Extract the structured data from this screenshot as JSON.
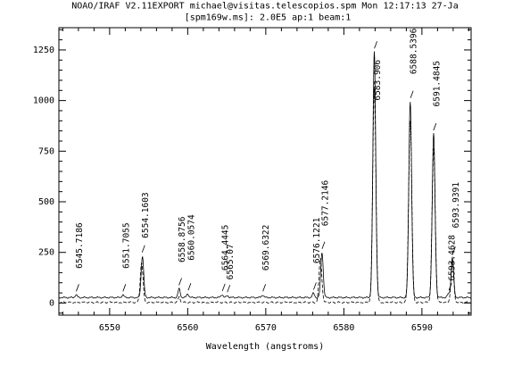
{
  "chart_data": {
    "type": "line",
    "title": "NOAO/IRAF V2.11EXPORT michael@visitas.telescopios.spm Mon 12:17:13 27-Ja",
    "subtitle": "[spm169w.ms]:  2.0E5 ap:1 beam:1",
    "xlabel": "Wavelength (angstroms)",
    "ylabel": "",
    "xlim": [
      6543.5,
      6596.3
    ],
    "ylim": [
      -60,
      1360
    ],
    "xticks": [
      6550,
      6560,
      6570,
      6580,
      6590
    ],
    "yticks": [
      0,
      250,
      500,
      750,
      1000,
      1250
    ],
    "xtick_labels": [
      "6550",
      "6560",
      "6570",
      "6580",
      "6590"
    ],
    "ytick_labels": [
      "0",
      "250",
      "500",
      "750",
      "1000",
      "1250"
    ],
    "grid": false,
    "series": [
      {
        "style": "solid",
        "baseline": 27,
        "peaks": [
          {
            "x": 6545.7,
            "y": 40,
            "w": 0.14
          },
          {
            "x": 6551.7,
            "y": 40,
            "w": 0.14
          },
          {
            "x": 6554.2,
            "y": 232,
            "w": 0.16
          },
          {
            "x": 6558.9,
            "y": 70,
            "w": 0.14
          },
          {
            "x": 6560.0,
            "y": 45,
            "w": 0.14
          },
          {
            "x": 6564.4,
            "y": 42,
            "w": 0.14
          },
          {
            "x": 6565.1,
            "y": 36,
            "w": 0.14
          },
          {
            "x": 6569.6,
            "y": 40,
            "w": 0.14
          },
          {
            "x": 6576.1,
            "y": 48,
            "w": 0.14
          },
          {
            "x": 6577.2,
            "y": 250,
            "w": 0.16
          },
          {
            "x": 6583.9,
            "y": 1240,
            "w": 0.18
          },
          {
            "x": 6588.5,
            "y": 995,
            "w": 0.18
          },
          {
            "x": 6591.5,
            "y": 835,
            "w": 0.18
          },
          {
            "x": 6593.4,
            "y": 45,
            "w": 0.14
          },
          {
            "x": 6593.9,
            "y": 225,
            "w": 0.16
          }
        ]
      },
      {
        "style": "dashed",
        "baseline": 3,
        "peaks": [
          {
            "x": 6554.1,
            "y": 200,
            "w": 0.18
          },
          {
            "x": 6558.9,
            "y": 30,
            "w": 0.14
          },
          {
            "x": 6577.0,
            "y": 220,
            "w": 0.18
          },
          {
            "x": 6583.9,
            "y": 1060,
            "w": 0.2
          },
          {
            "x": 6588.5,
            "y": 900,
            "w": 0.2
          },
          {
            "x": 6591.5,
            "y": 760,
            "w": 0.2
          },
          {
            "x": 6593.9,
            "y": 200,
            "w": 0.18
          }
        ]
      }
    ],
    "annotations": [
      {
        "text": "6545.7186",
        "x": 6545.72,
        "y": 40,
        "label_y": 170
      },
      {
        "text": "6551.7055",
        "x": 6551.71,
        "y": 40,
        "label_y": 170
      },
      {
        "text": "6554.1603",
        "x": 6554.16,
        "y": 232,
        "label_y": 320
      },
      {
        "text": "6558.8756",
        "x": 6558.88,
        "y": 70,
        "label_y": 200
      },
      {
        "text": "6560.0574",
        "x": 6560.06,
        "y": 45,
        "label_y": 210
      },
      {
        "text": "6564.4445",
        "x": 6564.44,
        "y": 42,
        "label_y": 160
      },
      {
        "text": "6565.07",
        "x": 6565.07,
        "y": 36,
        "label_y": 115
      },
      {
        "text": "6569.6322",
        "x": 6569.63,
        "y": 40,
        "label_y": 160
      },
      {
        "text": "6576.1221",
        "x": 6576.12,
        "y": 48,
        "label_y": 195
      },
      {
        "text": "6577.2146",
        "x": 6577.21,
        "y": 250,
        "label_y": 380
      },
      {
        "text": "6583.906",
        "x": 6583.91,
        "y": 1240,
        "label_y": 1000
      },
      {
        "text": "6588.5396",
        "x": 6588.54,
        "y": 995,
        "label_y": 1130
      },
      {
        "text": "6591.4845",
        "x": 6591.48,
        "y": 835,
        "label_y": 970
      },
      {
        "text": "6593.4628",
        "x": 6593.46,
        "y": 45,
        "label_y": 110
      },
      {
        "text": "6593.9391",
        "x": 6593.94,
        "y": 225,
        "label_y": 370
      }
    ]
  }
}
